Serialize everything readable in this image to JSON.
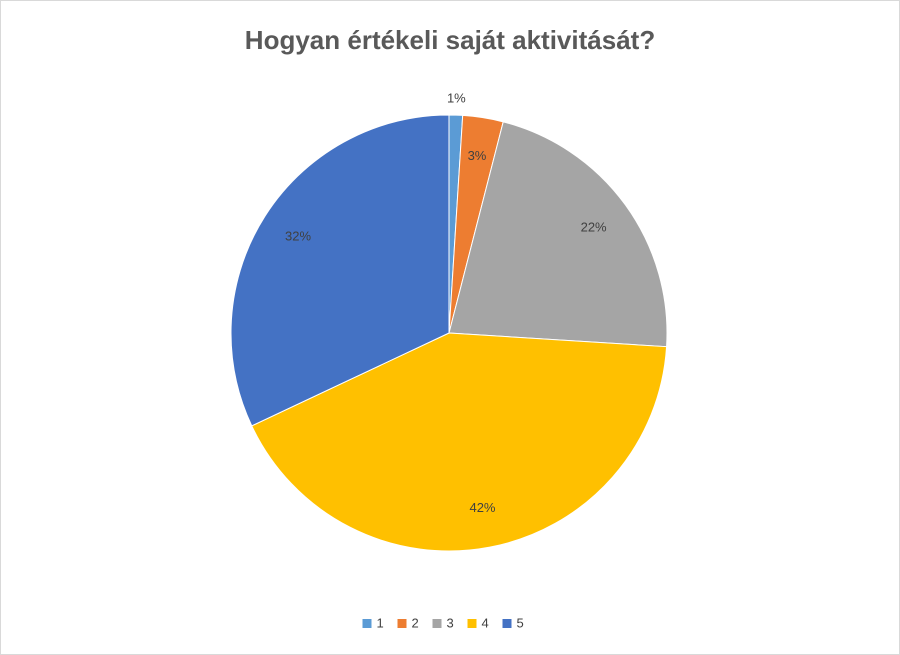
{
  "chart_data": {
    "type": "pie",
    "title": "Hogyan értékeli saját aktivitását?",
    "categories": [
      "1",
      "2",
      "3",
      "4",
      "5"
    ],
    "values": [
      1,
      3,
      22,
      42,
      32
    ],
    "value_labels": [
      "1%",
      "3%",
      "22%",
      "42%",
      "32%"
    ],
    "colors": [
      "#5b9bd5",
      "#ed7d31",
      "#a5a5a5",
      "#ffc000",
      "#4472c4"
    ],
    "legend": "bottom"
  }
}
